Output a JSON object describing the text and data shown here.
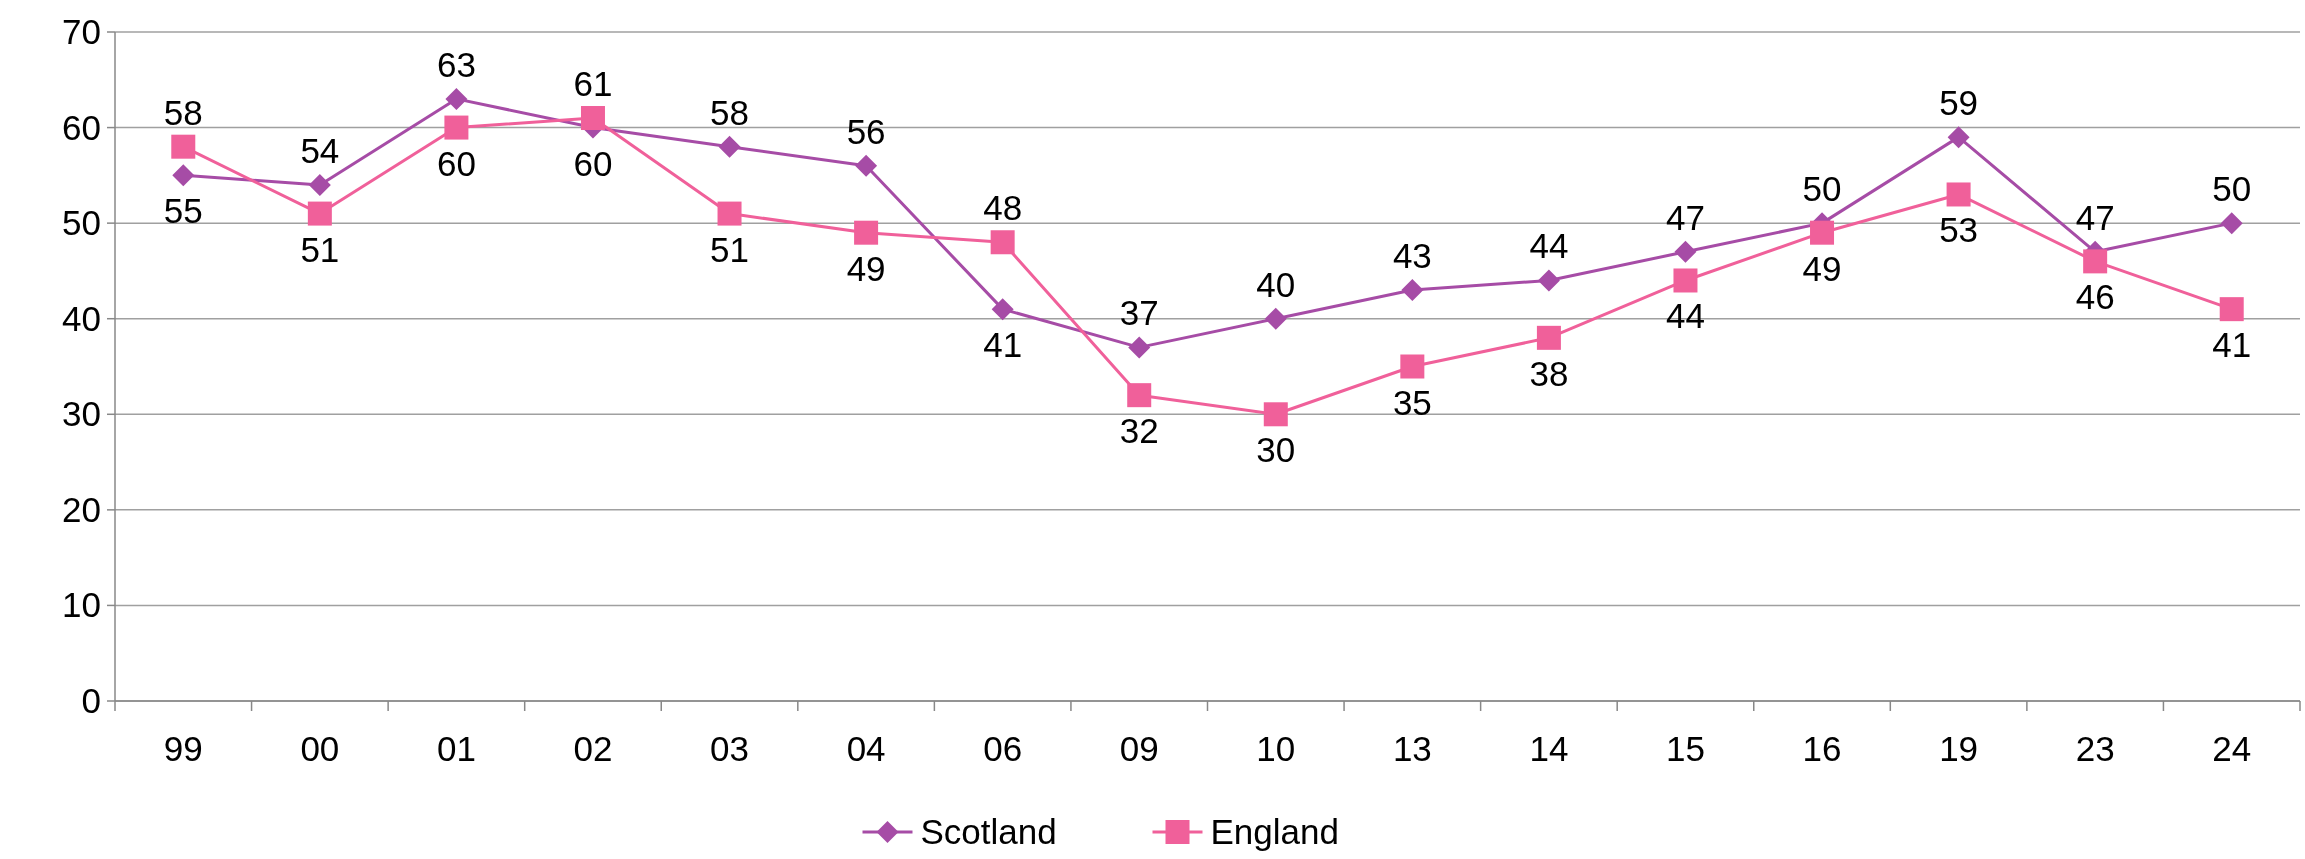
{
  "chart_data": {
    "type": "line",
    "categories": [
      "99",
      "00",
      "01",
      "02",
      "03",
      "04",
      "06",
      "09",
      "10",
      "13",
      "14",
      "15",
      "16",
      "19",
      "23",
      "24"
    ],
    "series": [
      {
        "name": "Scotland",
        "color": "#a64ca6",
        "marker": "diamond",
        "values": [
          55,
          54,
          63,
          60,
          58,
          56,
          41,
          37,
          40,
          43,
          44,
          47,
          50,
          59,
          47,
          50
        ]
      },
      {
        "name": "England",
        "color": "#f0609a",
        "marker": "square",
        "values": [
          58,
          51,
          60,
          61,
          51,
          49,
          48,
          32,
          30,
          35,
          38,
          44,
          49,
          53,
          46,
          41
        ]
      }
    ],
    "ylim": [
      0,
      70
    ],
    "yticks": [
      0,
      10,
      20,
      30,
      40,
      50,
      60,
      70
    ],
    "grid": "y",
    "legend": "bottom",
    "data_labels": true
  }
}
